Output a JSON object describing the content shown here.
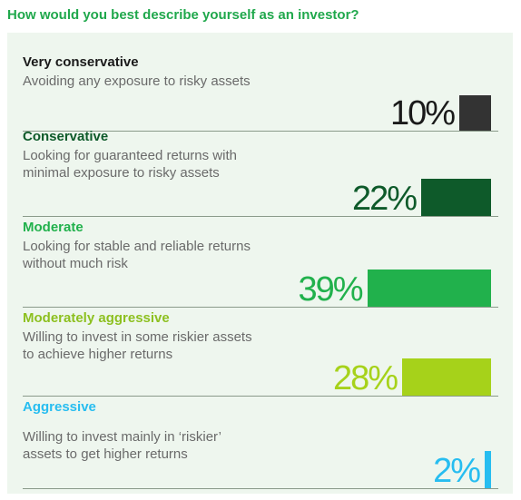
{
  "question": "How would you best describe yourself as an investor?",
  "chart_data": {
    "type": "bar",
    "categories": [
      "Very conservative",
      "Conservative",
      "Moderate",
      "Moderately aggressive",
      "Aggressive"
    ],
    "descriptions": [
      "Avoiding any exposure to risky assets",
      "Looking for guaranteed returns with minimal exposure to risky assets",
      "Looking for stable and reliable returns without much risk",
      "Willing to invest in some riskier assets to achieve higher returns",
      "Willing to invest mainly in ‘riskier’ assets to get higher returns"
    ],
    "values": [
      10,
      22,
      39,
      28,
      2
    ],
    "value_labels": [
      "10%",
      "22%",
      "39%",
      "28%",
      "2%"
    ],
    "colors": [
      "#333333",
      "#0e5a2a",
      "#21b14c",
      "#a6d21a",
      "#27bdf0"
    ],
    "title_colors": [
      "#1a1a1a",
      "#0e5a2a",
      "#21b14c",
      "#8dc020",
      "#27bdf0"
    ],
    "value_colors": [
      "#1a1a1a",
      "#0e5a2a",
      "#21b14c",
      "#a6d21a",
      "#27bdf0"
    ]
  }
}
